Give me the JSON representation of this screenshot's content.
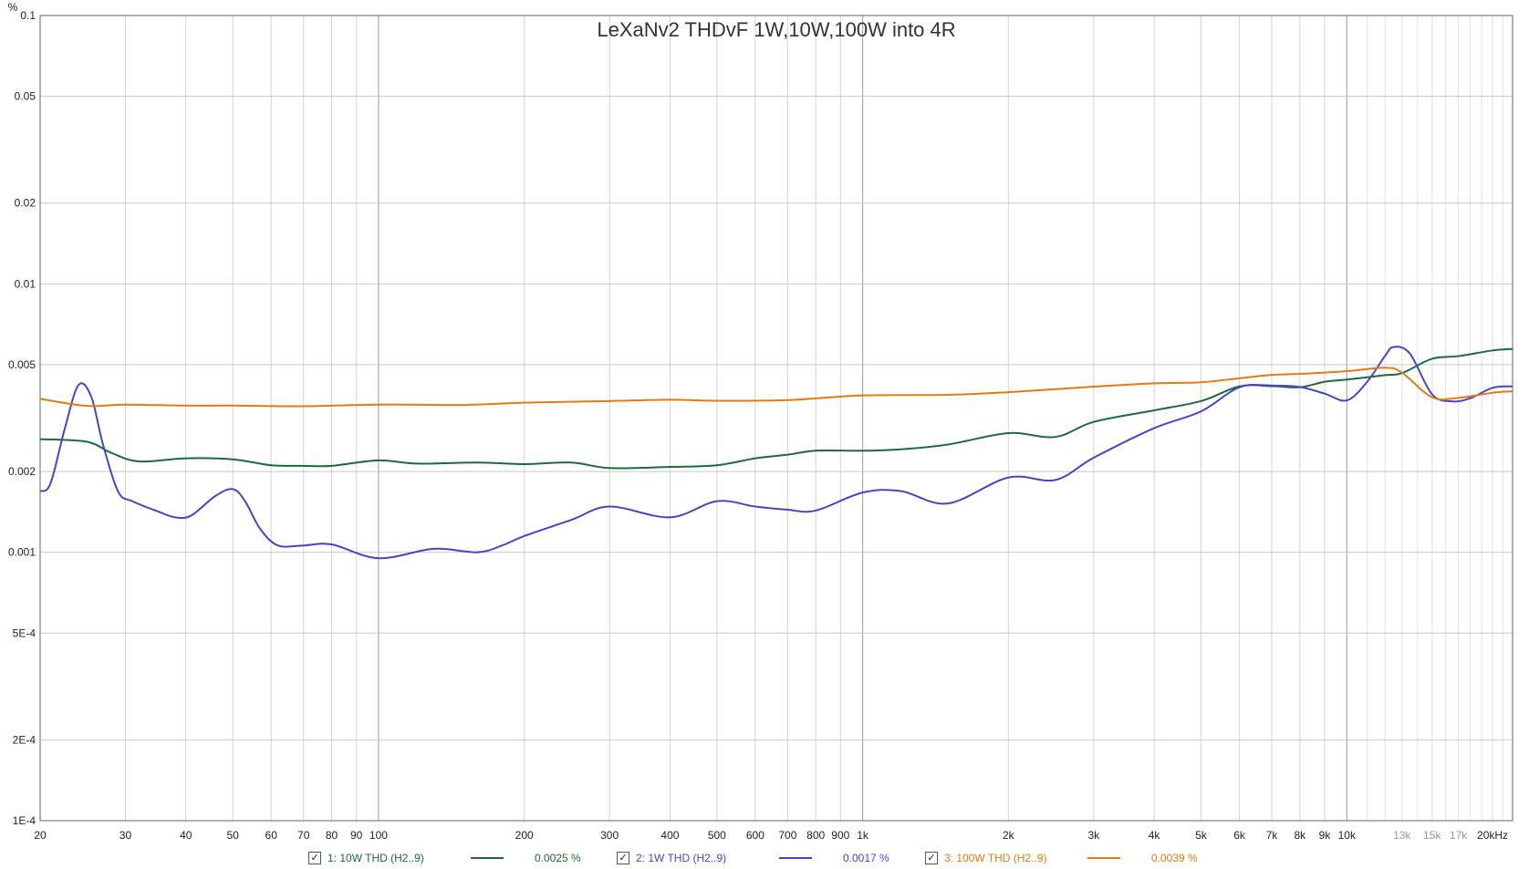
{
  "chart_data": {
    "type": "line",
    "title": "LeXaNv2 THDvF 1W,10W,100W into 4R",
    "ylabel": "%",
    "xscale": "log",
    "yscale": "log",
    "xlim": [
      20,
      22000
    ],
    "ylim": [
      0.0001,
      0.1
    ],
    "grid": true,
    "legend_placement": "bottom",
    "y_ticks": [
      {
        "value": 0.1,
        "label": "0.1"
      },
      {
        "value": 0.05,
        "label": "0.05"
      },
      {
        "value": 0.02,
        "label": "0.02"
      },
      {
        "value": 0.01,
        "label": "0.01"
      },
      {
        "value": 0.005,
        "label": "0.005"
      },
      {
        "value": 0.002,
        "label": "0.002"
      },
      {
        "value": 0.001,
        "label": "0.001"
      },
      {
        "value": 0.0005,
        "label": "5E-4"
      },
      {
        "value": 0.0002,
        "label": "2E-4"
      },
      {
        "value": 0.0001,
        "label": "1E-4"
      }
    ],
    "x_ticks": [
      {
        "value": 20,
        "label": "20"
      },
      {
        "value": 30,
        "label": "30"
      },
      {
        "value": 40,
        "label": "40"
      },
      {
        "value": 50,
        "label": "50"
      },
      {
        "value": 60,
        "label": "60"
      },
      {
        "value": 70,
        "label": "70"
      },
      {
        "value": 80,
        "label": "80"
      },
      {
        "value": 90,
        "label": "90"
      },
      {
        "value": 100,
        "label": "100"
      },
      {
        "value": 200,
        "label": "200"
      },
      {
        "value": 300,
        "label": "300"
      },
      {
        "value": 400,
        "label": "400"
      },
      {
        "value": 500,
        "label": "500"
      },
      {
        "value": 600,
        "label": "600"
      },
      {
        "value": 700,
        "label": "700"
      },
      {
        "value": 800,
        "label": "800"
      },
      {
        "value": 900,
        "label": "900"
      },
      {
        "value": 1000,
        "label": "1k"
      },
      {
        "value": 2000,
        "label": "2k"
      },
      {
        "value": 3000,
        "label": "3k"
      },
      {
        "value": 4000,
        "label": "4k"
      },
      {
        "value": 5000,
        "label": "5k"
      },
      {
        "value": 6000,
        "label": "6k"
      },
      {
        "value": 7000,
        "label": "7k"
      },
      {
        "value": 8000,
        "label": "8k"
      },
      {
        "value": 9000,
        "label": "9k"
      },
      {
        "value": 10000,
        "label": "10k"
      },
      {
        "value": 13000,
        "label": "13k",
        "minor": true
      },
      {
        "value": 15000,
        "label": "15k",
        "minor": true
      },
      {
        "value": 17000,
        "label": "17k",
        "minor": true
      },
      {
        "value": 20000,
        "label": "20kHz"
      }
    ],
    "series": [
      {
        "name": "1: 10W THD (H2..9)",
        "color": "#1d6b3c",
        "legend_value": "0.0025 %",
        "points": [
          [
            20,
            0.00264
          ],
          [
            25,
            0.00258
          ],
          [
            28,
            0.00235
          ],
          [
            32,
            0.00218
          ],
          [
            40,
            0.00224
          ],
          [
            50,
            0.00222
          ],
          [
            60,
            0.00211
          ],
          [
            70,
            0.0021
          ],
          [
            80,
            0.0021
          ],
          [
            100,
            0.0022
          ],
          [
            120,
            0.00214
          ],
          [
            160,
            0.00216
          ],
          [
            200,
            0.00213
          ],
          [
            250,
            0.00216
          ],
          [
            300,
            0.00206
          ],
          [
            400,
            0.00208
          ],
          [
            500,
            0.00211
          ],
          [
            600,
            0.00224
          ],
          [
            700,
            0.00231
          ],
          [
            800,
            0.00239
          ],
          [
            1000,
            0.00239
          ],
          [
            1200,
            0.00242
          ],
          [
            1500,
            0.00252
          ],
          [
            2000,
            0.00278
          ],
          [
            2500,
            0.00269
          ],
          [
            3000,
            0.00306
          ],
          [
            4000,
            0.00338
          ],
          [
            5000,
            0.00366
          ],
          [
            6000,
            0.00415
          ],
          [
            7000,
            0.00416
          ],
          [
            8000,
            0.00412
          ],
          [
            9000,
            0.00432
          ],
          [
            10000,
            0.0044
          ],
          [
            12000,
            0.00457
          ],
          [
            13000,
            0.00465
          ],
          [
            15000,
            0.00526
          ],
          [
            17000,
            0.00538
          ],
          [
            20000,
            0.00565
          ],
          [
            22000,
            0.00572
          ]
        ]
      },
      {
        "name": "2: 1W THD (H2..9)",
        "color": "#4a44c4",
        "legend_value": "0.0017 %",
        "points": [
          [
            20,
            0.00169
          ],
          [
            21,
            0.0018
          ],
          [
            22.5,
            0.0029
          ],
          [
            24,
            0.0042
          ],
          [
            25.5,
            0.0038
          ],
          [
            27,
            0.0025
          ],
          [
            29,
            0.00168
          ],
          [
            31,
            0.00155
          ],
          [
            35,
            0.00142
          ],
          [
            38,
            0.00135
          ],
          [
            41,
            0.00137
          ],
          [
            46,
            0.00162
          ],
          [
            50,
            0.00172
          ],
          [
            53,
            0.00155
          ],
          [
            57,
            0.00122
          ],
          [
            62,
            0.00106
          ],
          [
            70,
            0.00106
          ],
          [
            80,
            0.00107
          ],
          [
            100,
            0.00095
          ],
          [
            130,
            0.00103
          ],
          [
            160,
            0.001
          ],
          [
            180,
            0.00106
          ],
          [
            200,
            0.00115
          ],
          [
            250,
            0.00132
          ],
          [
            300,
            0.00148
          ],
          [
            400,
            0.00135
          ],
          [
            500,
            0.00155
          ],
          [
            600,
            0.00148
          ],
          [
            700,
            0.00144
          ],
          [
            800,
            0.00143
          ],
          [
            1000,
            0.00167
          ],
          [
            1200,
            0.00169
          ],
          [
            1500,
            0.00152
          ],
          [
            2000,
            0.0019
          ],
          [
            2500,
            0.00186
          ],
          [
            3000,
            0.00225
          ],
          [
            4000,
            0.0029
          ],
          [
            5000,
            0.00335
          ],
          [
            6000,
            0.00412
          ],
          [
            7000,
            0.00418
          ],
          [
            8000,
            0.00413
          ],
          [
            9000,
            0.0039
          ],
          [
            10000,
            0.00368
          ],
          [
            11000,
            0.0043
          ],
          [
            12000,
            0.0054
          ],
          [
            12500,
            0.00582
          ],
          [
            13500,
            0.0055
          ],
          [
            15000,
            0.00388
          ],
          [
            16500,
            0.00365
          ],
          [
            18000,
            0.00375
          ],
          [
            20000,
            0.0041
          ],
          [
            22000,
            0.00415
          ]
        ]
      },
      {
        "name": "3: 100W THD (H2..9)",
        "color": "#e07c10",
        "legend_value": "0.0039 %",
        "points": [
          [
            20,
            0.00373
          ],
          [
            25,
            0.00351
          ],
          [
            30,
            0.00355
          ],
          [
            40,
            0.00352
          ],
          [
            50,
            0.00352
          ],
          [
            70,
            0.0035
          ],
          [
            100,
            0.00355
          ],
          [
            150,
            0.00354
          ],
          [
            200,
            0.00361
          ],
          [
            300,
            0.00366
          ],
          [
            400,
            0.0037
          ],
          [
            500,
            0.00367
          ],
          [
            700,
            0.00369
          ],
          [
            1000,
            0.00384
          ],
          [
            1500,
            0.00386
          ],
          [
            2000,
            0.00395
          ],
          [
            3000,
            0.00414
          ],
          [
            4000,
            0.00426
          ],
          [
            5000,
            0.0043
          ],
          [
            6000,
            0.00445
          ],
          [
            7000,
            0.00458
          ],
          [
            8000,
            0.00462
          ],
          [
            10000,
            0.00473
          ],
          [
            12000,
            0.00487
          ],
          [
            13000,
            0.00467
          ],
          [
            15000,
            0.00378
          ],
          [
            17000,
            0.00376
          ],
          [
            20000,
            0.00393
          ],
          [
            22000,
            0.00398
          ]
        ]
      }
    ]
  }
}
